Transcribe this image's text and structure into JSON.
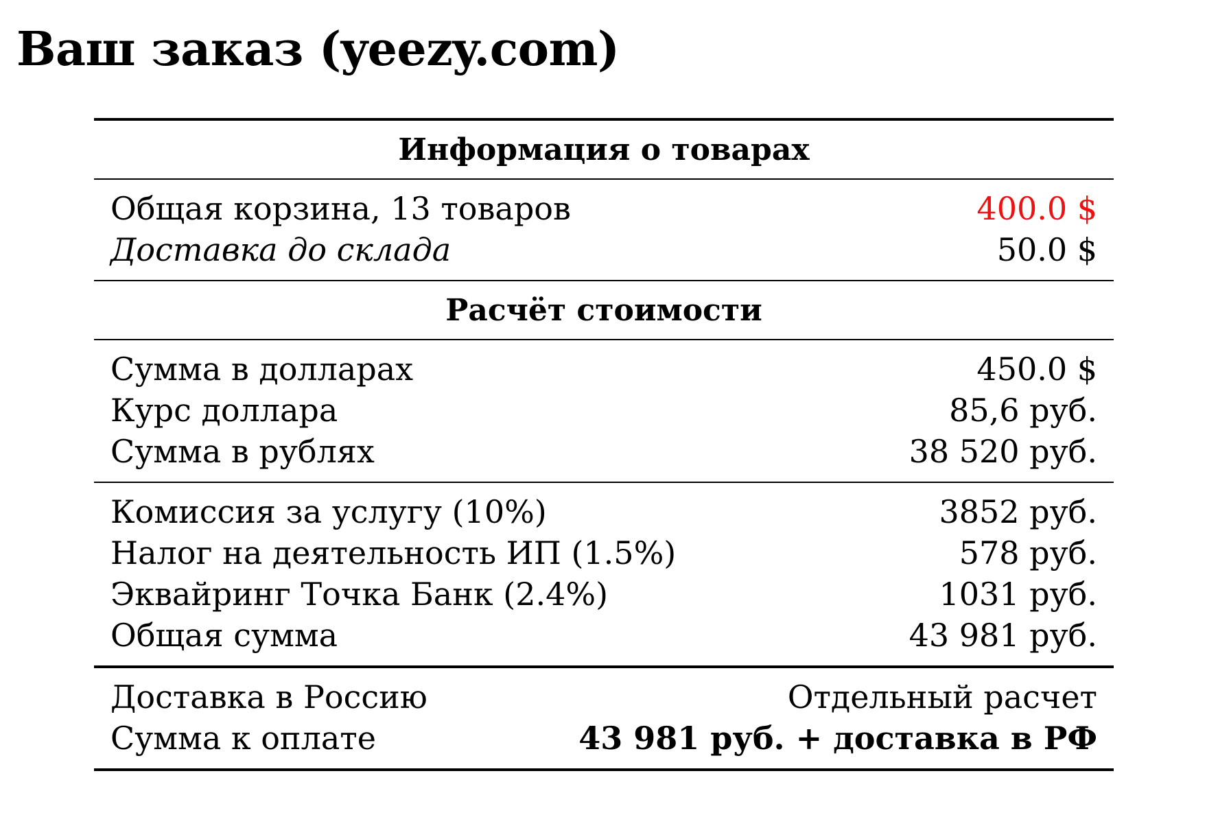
{
  "title": "Ваш заказ (yeezy.com)",
  "colors": {
    "highlight": "#ee1111",
    "text": "#000000"
  },
  "sections": {
    "goods": {
      "heading": "Информация о товарах",
      "rows": [
        {
          "label": "Общая корзина, 13 товаров",
          "value": "400.0 $"
        },
        {
          "label": "Доставка до склада",
          "value": "50.0 $"
        }
      ]
    },
    "calc": {
      "heading": "Расчёт стоимости",
      "rows": [
        {
          "label": "Сумма в долларах",
          "value": "450.0 $"
        },
        {
          "label": "Курс доллара",
          "value": "85,6 руб."
        },
        {
          "label": "Сумма в рублях",
          "value": "38 520 руб."
        }
      ]
    },
    "fees": {
      "rows": [
        {
          "label": "Комиссия за услугу (10%)",
          "value": "3852 руб."
        },
        {
          "label": "Налог на деятельность ИП (1.5%)",
          "value": "578 руб."
        },
        {
          "label": "Эквайринг Точка Банк (2.4%)",
          "value": "1031 руб."
        },
        {
          "label": "Общая сумма",
          "value": "43 981 руб."
        }
      ]
    },
    "total": {
      "rows": [
        {
          "label": "Доставка в Россию",
          "value": "Отдельный расчет"
        },
        {
          "label": "Сумма к оплате",
          "value": "43 981 руб. + доставка в РФ"
        }
      ]
    }
  }
}
